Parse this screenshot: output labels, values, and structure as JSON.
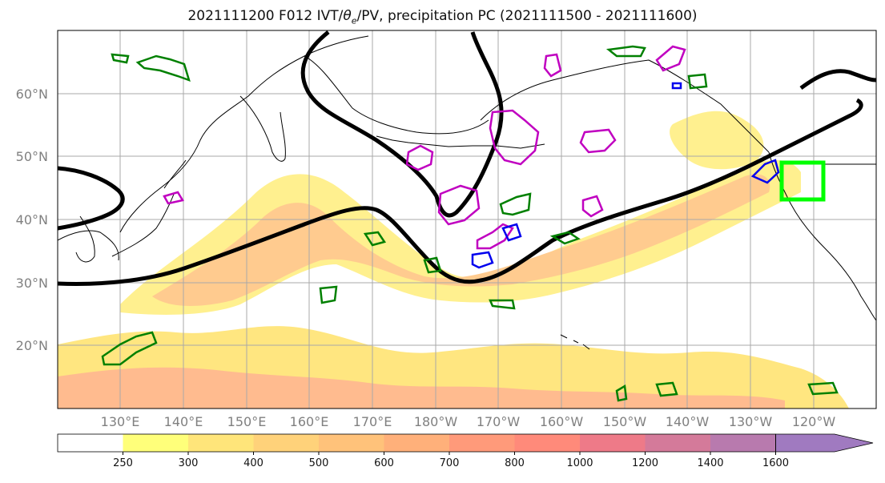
{
  "title_main": "2021111200 F012 IVT/",
  "title_theta": "θ",
  "title_sub_e": "e",
  "title_rest": "/PV, precipitation PC (2021111500 - 2021111600)",
  "lat_labels": [
    "60°N",
    "50°N",
    "40°N",
    "30°N",
    "20°N"
  ],
  "lon_labels": [
    "130°E",
    "140°E",
    "150°E",
    "160°E",
    "170°E",
    "180°W",
    "170°W",
    "160°W",
    "150°W",
    "140°W",
    "130°W",
    "120°W"
  ],
  "colorbar": {
    "levels": [
      "250",
      "300",
      "400",
      "500",
      "600",
      "700",
      "800",
      "1000",
      "1200",
      "1400",
      "1600"
    ],
    "colors": [
      "#ffffff",
      "#ffff7a",
      "#ffe57a",
      "#ffd27a",
      "#ffc27a",
      "#ffb07a",
      "#ff9a7a",
      "#ff8a7a",
      "#ee7a88",
      "#d47a9a",
      "#b87aae",
      "#a07ac0"
    ]
  },
  "colors": {
    "theta_contour": "#000000",
    "pv_green": "#008000",
    "pv_magenta": "#c000c0",
    "precip_blue": "#0000ee",
    "target_box": "#00ff00",
    "coast": "#000000"
  }
}
